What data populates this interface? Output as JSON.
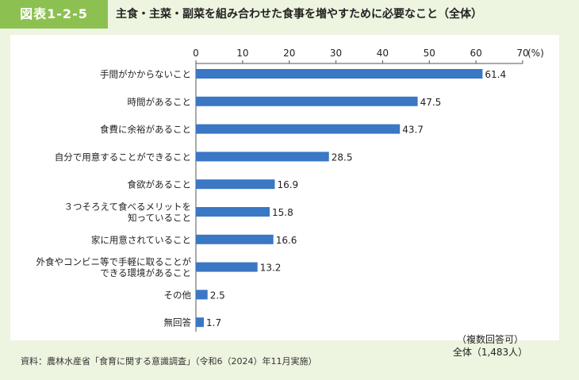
{
  "header": {
    "figure_label": "図表1-2-5",
    "title": "主食・主菜・副菜を組み合わせた食事を増やすために必要なこと（全体）"
  },
  "note": {
    "line1": "（複数回答可）",
    "line2": "全体（1,483人）"
  },
  "source": "資料：農林水産省「食育に関する意識調査」（令和6（2024）年11月実施）",
  "colors": {
    "bar": "#3a77c4",
    "badge": "#8cc152",
    "background": "#edf4df"
  },
  "chart_data": {
    "type": "bar",
    "orientation": "horizontal",
    "unit_label": "(%)",
    "xlim": [
      0,
      70
    ],
    "ticks": [
      "0",
      "10",
      "20",
      "30",
      "40",
      "50",
      "60",
      "70"
    ],
    "grid": false,
    "categories": [
      [
        "手間がかからないこと"
      ],
      [
        "時間があること"
      ],
      [
        "食費に余裕があること"
      ],
      [
        "自分で用意することができること"
      ],
      [
        "食欲があること"
      ],
      [
        "３つそろえて食べるメリットを",
        "知っていること"
      ],
      [
        "家に用意されていること"
      ],
      [
        "外食やコンビニ等で手軽に取ることが",
        "できる環境があること"
      ],
      [
        "その他"
      ],
      [
        "無回答"
      ]
    ],
    "values": [
      61.4,
      47.5,
      43.7,
      28.5,
      16.9,
      15.8,
      16.6,
      13.2,
      2.5,
      1.7
    ],
    "value_labels": [
      "61.4",
      "47.5",
      "43.7",
      "28.5",
      "16.9",
      "15.8",
      "16.6",
      "13.2",
      "2.5",
      "1.7"
    ]
  }
}
